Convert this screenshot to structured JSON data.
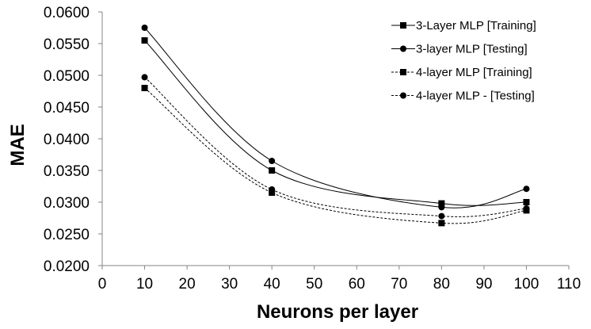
{
  "chart_data": {
    "type": "line",
    "xlabel": "Neurons per layer",
    "ylabel": "MAE",
    "xlim": [
      0,
      110
    ],
    "ylim": [
      0.02,
      0.06
    ],
    "xticks": [
      "0",
      "10",
      "20",
      "30",
      "40",
      "50",
      "60",
      "70",
      "80",
      "90",
      "100",
      "110"
    ],
    "yticks": [
      "0.0200",
      "0.0250",
      "0.0300",
      "0.0350",
      "0.0400",
      "0.0450",
      "0.0500",
      "0.0550",
      "0.0600"
    ],
    "grid": false,
    "legend_position": "top-right",
    "series": [
      {
        "name": "3-Layer MLP [Training]",
        "marker": "square",
        "dash": "solid",
        "x": [
          10,
          40,
          80,
          100
        ],
        "y": [
          0.0555,
          0.035,
          0.0298,
          0.03
        ]
      },
      {
        "name": "3-layer MLP [Testing]",
        "marker": "circle",
        "dash": "solid",
        "x": [
          10,
          40,
          80,
          100
        ],
        "y": [
          0.0575,
          0.0365,
          0.0292,
          0.0321
        ]
      },
      {
        "name": "4-layer MLP [Training]",
        "marker": "square",
        "dash": "dashed",
        "x": [
          10,
          40,
          80,
          100
        ],
        "y": [
          0.048,
          0.0315,
          0.0267,
          0.0287
        ]
      },
      {
        "name": "4-layer MLP - [Testing]",
        "marker": "circle",
        "dash": "dashed",
        "x": [
          10,
          40,
          80,
          100
        ],
        "y": [
          0.0497,
          0.032,
          0.0278,
          0.029
        ]
      }
    ]
  }
}
